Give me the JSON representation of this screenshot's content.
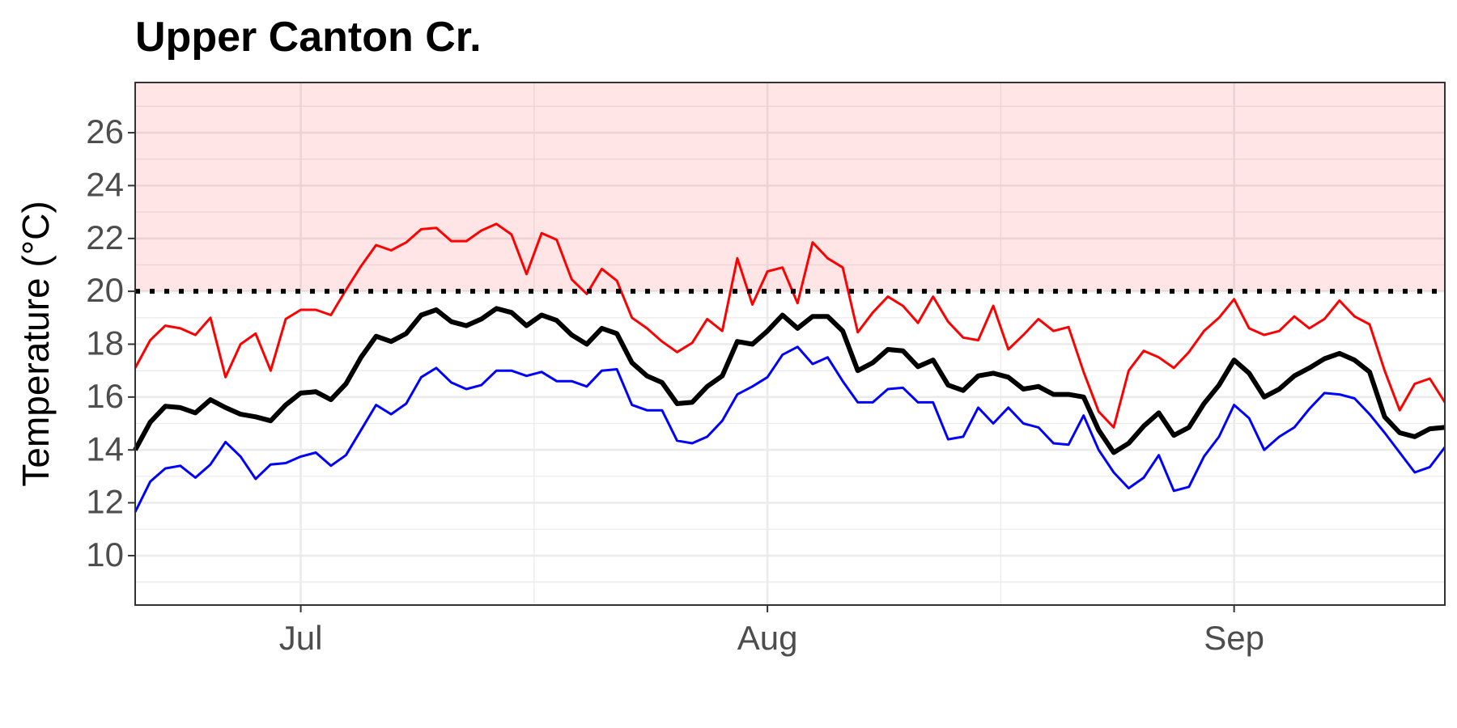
{
  "chart_data": {
    "type": "line",
    "title": "Upper Canton Cr.",
    "y_label": "Temperature (°C)",
    "categories": [
      null,
      null,
      null,
      null,
      null,
      null,
      null,
      null,
      null,
      null,
      null,
      "Jul",
      null,
      null,
      null,
      null,
      null,
      null,
      null,
      null,
      null,
      null,
      null,
      null,
      null,
      null,
      null,
      null,
      null,
      null,
      null,
      null,
      null,
      null,
      null,
      null,
      null,
      null,
      null,
      null,
      null,
      null,
      "Aug",
      null,
      null,
      null,
      null,
      null,
      null,
      null,
      null,
      null,
      null,
      null,
      null,
      null,
      null,
      null,
      null,
      null,
      null,
      null,
      null,
      null,
      null,
      null,
      null,
      null,
      null,
      null,
      null,
      null,
      null,
      "Sep",
      null,
      null,
      null,
      null,
      null,
      null,
      null,
      null,
      null,
      null,
      null,
      null,
      null,
      null
    ],
    "series": [
      {
        "color": "#ff0000",
        "line_width": 3,
        "values": [
          17.1,
          18.15,
          18.7,
          18.6,
          18.35,
          19.0,
          16.75,
          18.0,
          18.4,
          17.0,
          18.95,
          19.3,
          19.3,
          19.1,
          20.05,
          20.95,
          21.75,
          21.55,
          21.85,
          22.35,
          22.4,
          21.9,
          21.9,
          22.3,
          22.55,
          22.15,
          20.65,
          22.2,
          21.95,
          20.45,
          19.9,
          20.85,
          20.4,
          19.0,
          18.6,
          18.1,
          17.7,
          18.05,
          18.95,
          18.5,
          21.25,
          19.5,
          20.75,
          20.9,
          19.55,
          21.85,
          21.25,
          20.9,
          18.45,
          19.2,
          19.8,
          19.45,
          18.8,
          19.8,
          18.85,
          18.25,
          18.15,
          19.45,
          17.8,
          18.35,
          18.95,
          18.5,
          18.65,
          16.95,
          15.45,
          14.85,
          17.0,
          17.75,
          17.5,
          17.1,
          17.7,
          18.5,
          19.0,
          19.7,
          18.6,
          18.35,
          18.5,
          19.05,
          18.6,
          18.95,
          19.65,
          19.05,
          18.75,
          17.0,
          15.5,
          16.5,
          16.7,
          15.8
        ]
      },
      {
        "color": "#0000ff",
        "line_width": 3,
        "values": [
          11.65,
          12.8,
          13.3,
          13.4,
          12.95,
          13.45,
          14.3,
          13.75,
          12.9,
          13.45,
          13.5,
          13.75,
          13.9,
          13.4,
          13.8,
          14.75,
          15.7,
          15.35,
          15.75,
          16.75,
          17.1,
          16.55,
          16.3,
          16.45,
          17.0,
          17.0,
          16.8,
          16.95,
          16.6,
          16.6,
          16.4,
          17.0,
          17.05,
          15.7,
          15.5,
          15.5,
          14.35,
          14.25,
          14.5,
          15.1,
          16.1,
          16.4,
          16.75,
          17.6,
          17.9,
          17.25,
          17.5,
          16.6,
          15.8,
          15.8,
          16.3,
          16.35,
          15.8,
          15.8,
          14.4,
          14.5,
          15.6,
          15.0,
          15.6,
          15.0,
          14.85,
          14.25,
          14.2,
          15.3,
          14.0,
          13.15,
          12.55,
          12.95,
          13.8,
          12.45,
          12.6,
          13.75,
          14.5,
          15.7,
          15.2,
          14.0,
          14.5,
          14.85,
          15.55,
          16.15,
          16.1,
          15.95,
          15.35,
          14.65,
          13.9,
          13.15,
          13.35,
          14.1
        ]
      },
      {
        "color": "#000000",
        "line_width": 6,
        "values": [
          14.0,
          15.05,
          15.65,
          15.6,
          15.4,
          15.9,
          15.6,
          15.35,
          15.25,
          15.1,
          15.7,
          16.15,
          16.2,
          15.9,
          16.5,
          17.5,
          18.3,
          18.1,
          18.4,
          19.1,
          19.3,
          18.85,
          18.7,
          18.95,
          19.35,
          19.2,
          18.7,
          19.1,
          18.9,
          18.35,
          18.0,
          18.6,
          18.4,
          17.3,
          16.8,
          16.55,
          15.75,
          15.8,
          16.4,
          16.8,
          18.1,
          18.0,
          18.5,
          19.1,
          18.6,
          19.05,
          19.05,
          18.5,
          17.0,
          17.3,
          17.8,
          17.75,
          17.15,
          17.4,
          16.45,
          16.25,
          16.8,
          16.9,
          16.75,
          16.3,
          16.4,
          16.1,
          16.1,
          16.0,
          14.75,
          13.9,
          14.25,
          14.9,
          15.4,
          14.55,
          14.85,
          15.75,
          16.45,
          17.4,
          16.9,
          16.0,
          16.3,
          16.8,
          17.1,
          17.45,
          17.65,
          17.4,
          16.95,
          15.25,
          14.65,
          14.5,
          14.8,
          14.85
        ]
      }
    ],
    "threshold": 20,
    "threshold_color": "#000000",
    "shade_color": "#ff0000",
    "ylim": [
      8.13,
      27.9
    ],
    "yticks": [
      10,
      12,
      14,
      16,
      18,
      20,
      22,
      24,
      26
    ],
    "grid": true
  }
}
